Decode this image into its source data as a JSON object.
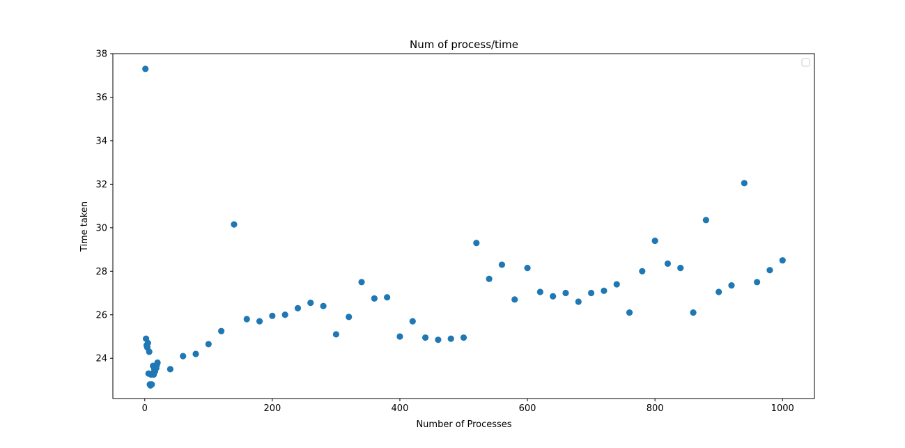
{
  "chart_data": {
    "type": "scatter",
    "title": "Num of process/time",
    "xlabel": "Number of Processes",
    "ylabel": "Time taken",
    "xlim": [
      -50,
      1050
    ],
    "ylim": [
      22.15,
      38.0
    ],
    "xticks": [
      0,
      200,
      400,
      600,
      800,
      1000
    ],
    "yticks": [
      24,
      26,
      28,
      30,
      32,
      34,
      36,
      38
    ],
    "grid": false,
    "legend": {
      "placement": "top-right",
      "entries": []
    },
    "marker_color": "#1f77b4",
    "series": [
      {
        "x": [
          1,
          2,
          3,
          4,
          5,
          6,
          7,
          8,
          9,
          10,
          11,
          12,
          13,
          14,
          15,
          16,
          17,
          18,
          19,
          20,
          40,
          60,
          80,
          100,
          120,
          140,
          160,
          180,
          200,
          220,
          240,
          260,
          280,
          300,
          320,
          340,
          360,
          380,
          400,
          420,
          440,
          460,
          480,
          500,
          520,
          540,
          560,
          580,
          600,
          620,
          640,
          660,
          680,
          700,
          720,
          740,
          760,
          780,
          800,
          820,
          840,
          860,
          880,
          900,
          920,
          940,
          960,
          980,
          1000
        ],
        "y": [
          37.3,
          24.9,
          24.6,
          24.5,
          24.7,
          23.3,
          24.3,
          22.8,
          22.75,
          23.25,
          22.8,
          23.3,
          23.65,
          23.25,
          23.5,
          23.4,
          23.6,
          23.55,
          23.7,
          23.8,
          23.5,
          24.1,
          24.2,
          24.65,
          25.25,
          30.15,
          25.8,
          25.7,
          25.95,
          26.0,
          26.3,
          26.55,
          26.4,
          25.1,
          25.9,
          27.5,
          26.75,
          26.8,
          25.0,
          25.7,
          24.95,
          24.85,
          24.9,
          24.95,
          29.3,
          27.65,
          28.3,
          26.7,
          28.15,
          27.05,
          26.85,
          27.0,
          26.6,
          27.0,
          27.1,
          27.4,
          26.1,
          28.0,
          29.4,
          28.35,
          28.15,
          26.1,
          30.35,
          27.05,
          27.35,
          32.05,
          27.5,
          28.05,
          28.5
        ]
      }
    ]
  }
}
